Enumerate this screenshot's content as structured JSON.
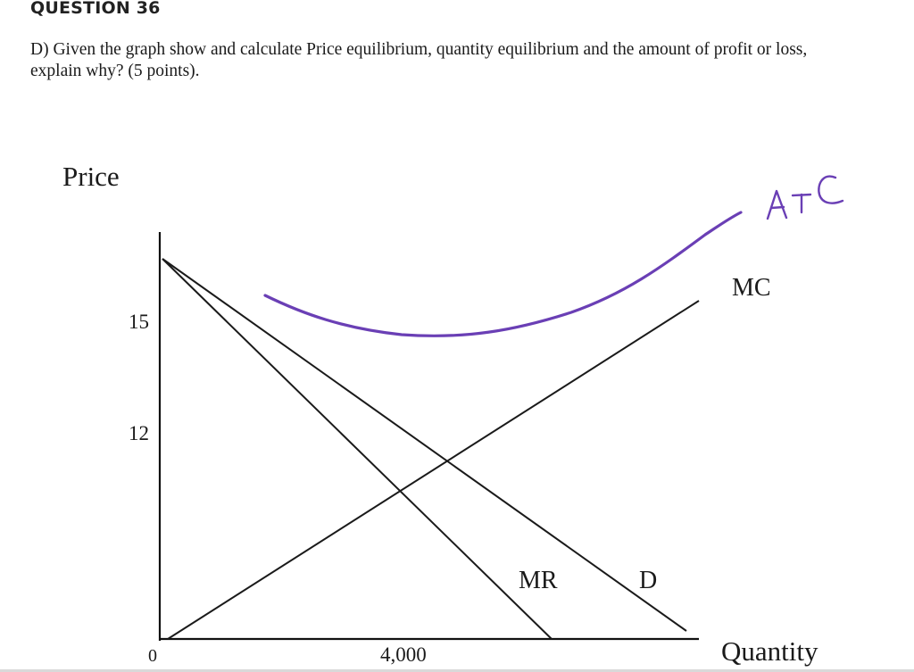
{
  "header": {
    "title": "QUESTION 36"
  },
  "question": {
    "line1": "D) Given the graph show and calculate Price equilibrium, quantity equilibrium and the amount of profit or loss,",
    "line2": "explain why? (5 points)."
  },
  "graph": {
    "y_axis_label": "Price",
    "x_axis_label": "Quantity",
    "y_ticks": [
      "15",
      "12"
    ],
    "x_ticks": [
      "0",
      "4,000"
    ],
    "curve_labels": {
      "mc": "MC",
      "mr": "MR",
      "demand": "D",
      "atc": "ATC"
    },
    "colors": {
      "axes": "#111111",
      "curves": "#1a1a1a",
      "atc": "#6a3fb5"
    }
  }
}
